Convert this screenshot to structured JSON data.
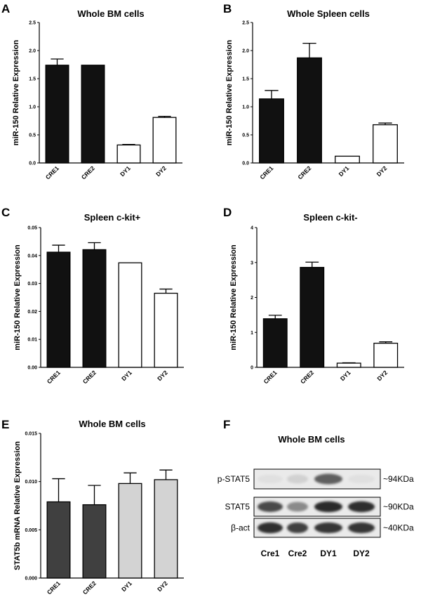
{
  "panels": {
    "A": {
      "letter": "A"
    },
    "B": {
      "letter": "B"
    },
    "C": {
      "letter": "C"
    },
    "D": {
      "letter": "D"
    },
    "E": {
      "letter": "E"
    },
    "F": {
      "letter": "F"
    }
  },
  "chart_data": [
    {
      "id": "A",
      "type": "bar",
      "title": "Whole BM cells",
      "ylabel": "miR-150 Relative Expression",
      "categories": [
        "CRE1",
        "CRE2",
        "DY1",
        "DY2"
      ],
      "values": [
        1.74,
        1.74,
        0.32,
        0.81
      ],
      "errors": [
        0.11,
        0.0,
        0.01,
        0.02
      ],
      "fills": [
        "#111111",
        "#111111",
        "#ffffff",
        "#ffffff"
      ],
      "ylim": [
        0,
        2.5
      ],
      "ticks": [
        0.0,
        0.5,
        1.0,
        1.5,
        2.0,
        2.5
      ],
      "tick_labels": [
        "0.0",
        "0.5",
        "1.0",
        "1.5",
        "2.0",
        "2.5"
      ]
    },
    {
      "id": "B",
      "type": "bar",
      "title": "Whole Spleen cells",
      "ylabel": "miR-150 Relative Expression",
      "categories": [
        "CRE1",
        "CRE2",
        "DY1",
        "DY2"
      ],
      "values": [
        1.14,
        1.87,
        0.12,
        0.68
      ],
      "errors": [
        0.15,
        0.26,
        0.0,
        0.03
      ],
      "fills": [
        "#111111",
        "#111111",
        "#ffffff",
        "#ffffff"
      ],
      "ylim": [
        0,
        2.5
      ],
      "ticks": [
        0.0,
        0.5,
        1.0,
        1.5,
        2.0,
        2.5
      ],
      "tick_labels": [
        "0.0",
        "0.5",
        "1.0",
        "1.5",
        "2.0",
        "2.5"
      ]
    },
    {
      "id": "C",
      "type": "bar",
      "title": "Spleen c-kit+",
      "ylabel": "miR-150 Relative Expression",
      "categories": [
        "CRE1",
        "CRE2",
        "DY1",
        "DY2"
      ],
      "values": [
        0.0412,
        0.0421,
        0.0374,
        0.0265
      ],
      "errors": [
        0.0025,
        0.0025,
        0.0,
        0.0015
      ],
      "fills": [
        "#111111",
        "#111111",
        "#ffffff",
        "#ffffff"
      ],
      "ylim": [
        0,
        0.05
      ],
      "ticks": [
        0.0,
        0.01,
        0.02,
        0.03,
        0.04,
        0.05
      ],
      "tick_labels": [
        "0.00",
        "0.01",
        "0.02",
        "0.03",
        "0.04",
        "0.05"
      ]
    },
    {
      "id": "D",
      "type": "bar",
      "title": "Spleen c-kit-",
      "ylabel": "miR-150 Relative Expression",
      "categories": [
        "CRE1",
        "CRE2",
        "DY1",
        "DY2"
      ],
      "values": [
        1.39,
        2.86,
        0.12,
        0.69
      ],
      "errors": [
        0.1,
        0.15,
        0.01,
        0.04
      ],
      "fills": [
        "#111111",
        "#111111",
        "#ffffff",
        "#ffffff"
      ],
      "ylim": [
        0,
        4
      ],
      "ticks": [
        0,
        1,
        2,
        3,
        4
      ],
      "tick_labels": [
        "0",
        "1",
        "2",
        "3",
        "4"
      ]
    },
    {
      "id": "E",
      "type": "bar",
      "title": "Whole BM cells",
      "ylabel": "STAT5b mRNA Relative Expression",
      "categories": [
        "CRE1",
        "CRE2",
        "DY1",
        "DY2"
      ],
      "values": [
        0.0079,
        0.0076,
        0.0098,
        0.0102
      ],
      "errors": [
        0.0024,
        0.002,
        0.0011,
        0.001
      ],
      "fills": [
        "#404040",
        "#404040",
        "#d3d3d3",
        "#d3d3d3"
      ],
      "ylim": [
        0,
        0.015
      ],
      "ticks": [
        0.0,
        0.005,
        0.01,
        0.015
      ],
      "tick_labels": [
        "0.000",
        "0.005",
        "0.010",
        "0.015"
      ]
    }
  ],
  "blot": {
    "title": "Whole BM cells",
    "lanes": [
      "Cre1",
      "Cre2",
      "DY1",
      "DY2"
    ],
    "rows": [
      {
        "label": "p-STAT5",
        "size": "~94KDa",
        "intensity": [
          0.05,
          0.12,
          0.65,
          0.05
        ]
      },
      {
        "label": "STAT5",
        "size": "~90KDa",
        "intensity": [
          0.75,
          0.45,
          0.9,
          0.88
        ]
      },
      {
        "label": "β-act",
        "size": "~40KDa",
        "intensity": [
          0.88,
          0.8,
          0.85,
          0.85
        ]
      }
    ]
  }
}
